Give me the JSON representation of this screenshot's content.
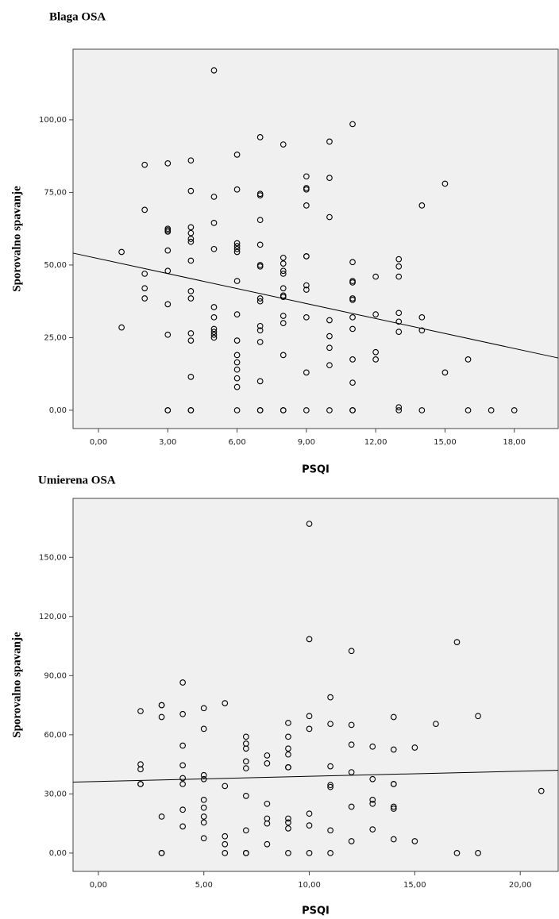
{
  "chart_data": [
    {
      "type": "scatter",
      "title": "Blaga OSA",
      "x_label": "PSQI",
      "y_label": "Sporovalno spavanje",
      "xlim": [
        -1.1,
        19.9
      ],
      "ylim": [
        -6.3,
        124.3
      ],
      "xticks": [
        {
          "value": 0,
          "label": "0,00"
        },
        {
          "value": 3,
          "label": "3,00"
        },
        {
          "value": 6,
          "label": "6,00"
        },
        {
          "value": 9,
          "label": "9,00"
        },
        {
          "value": 12,
          "label": "12,00"
        },
        {
          "value": 15,
          "label": "15,00"
        },
        {
          "value": 18,
          "label": "18,00"
        }
      ],
      "yticks": [
        {
          "value": 0,
          "label": "0,00"
        },
        {
          "value": 25,
          "label": "25,00"
        },
        {
          "value": 50,
          "label": "50,00"
        },
        {
          "value": 75,
          "label": "75,00"
        },
        {
          "value": 100,
          "label": "100,00"
        }
      ],
      "color": "#000000",
      "x": [
        1,
        1,
        2,
        2,
        2,
        2,
        2,
        3,
        3,
        3,
        3,
        3,
        3,
        3,
        3,
        3,
        3,
        4,
        4,
        4,
        4,
        4,
        4,
        4,
        4,
        4,
        4,
        4,
        4,
        4,
        4,
        5,
        5,
        5,
        5,
        5,
        5,
        5,
        5,
        5,
        5,
        6,
        6,
        6,
        6,
        6,
        6,
        6,
        6,
        6,
        6,
        6,
        6,
        6,
        6,
        6,
        7,
        7,
        7,
        7,
        7,
        7,
        7,
        7,
        7,
        7,
        7,
        7,
        7,
        7,
        7,
        8,
        8,
        8,
        8,
        8,
        8,
        8,
        8,
        8,
        8,
        8,
        8,
        8,
        9,
        9,
        9,
        9,
        9,
        9,
        9,
        9,
        9,
        9,
        9,
        10,
        10,
        10,
        10,
        10,
        10,
        10,
        10,
        11,
        11,
        11,
        11,
        11,
        11,
        11,
        11,
        11,
        11,
        11,
        11,
        12,
        12,
        12,
        12,
        13,
        13,
        13,
        13,
        13,
        13,
        13,
        13,
        14,
        14,
        14,
        14,
        15,
        15,
        16,
        16,
        17,
        18
      ],
      "y": [
        54.5,
        28.5,
        84.5,
        69,
        47,
        42,
        38.5,
        85,
        62.5,
        62,
        61.5,
        55,
        48,
        36.5,
        26,
        0,
        0,
        86,
        75.5,
        63,
        61,
        59,
        58,
        51.5,
        41,
        38.5,
        26.5,
        24,
        11.5,
        0,
        0,
        117,
        73.5,
        64.5,
        55.5,
        35.5,
        32,
        28,
        27,
        26,
        25,
        88,
        76,
        57.5,
        56.5,
        55.5,
        54.5,
        44.5,
        33,
        24,
        19,
        16.5,
        14,
        11,
        8,
        0,
        94,
        74.5,
        74,
        65.5,
        57,
        50,
        49.5,
        38.5,
        37.5,
        29,
        27.5,
        23.5,
        10,
        0,
        0,
        91.5,
        52.5,
        50.5,
        48,
        47,
        42,
        39.5,
        39,
        32.5,
        30,
        19,
        0,
        0,
        80.5,
        76.5,
        76,
        70.5,
        53,
        53,
        43,
        41.5,
        32,
        13,
        0,
        92.5,
        80,
        66.5,
        31,
        25.5,
        21.5,
        15.5,
        0,
        98.5,
        51,
        44.5,
        44,
        38.5,
        38,
        32,
        28,
        17.5,
        9.5,
        0,
        0,
        46,
        33,
        20,
        17.5,
        52,
        49.5,
        46,
        33.5,
        30.5,
        27,
        1,
        0,
        70.5,
        32,
        27.5,
        0,
        78,
        13,
        17.5,
        0,
        0,
        0
      ],
      "fit_line": {
        "x": [
          -1.1,
          19.9
        ],
        "y": [
          54.1,
          18.0
        ]
      }
    },
    {
      "type": "scatter",
      "title": "Umierena OSA",
      "x_label": "PSQI",
      "y_label": "Sporovalno spavanje",
      "xlim": [
        -1.2,
        21.8
      ],
      "ylim": [
        -9.3,
        179.9
      ],
      "xticks": [
        {
          "value": 0,
          "label": "0,00"
        },
        {
          "value": 5,
          "label": "5,00"
        },
        {
          "value": 10,
          "label": "10,00"
        },
        {
          "value": 15,
          "label": "15,00"
        },
        {
          "value": 20,
          "label": "20,00"
        }
      ],
      "yticks": [
        {
          "value": 0,
          "label": "0,00"
        },
        {
          "value": 30,
          "label": "30,00"
        },
        {
          "value": 60,
          "label": "60,00"
        },
        {
          "value": 90,
          "label": "90,00"
        },
        {
          "value": 120,
          "label": "120,00"
        },
        {
          "value": 150,
          "label": "150,00"
        }
      ],
      "color": "#000000",
      "x": [
        2,
        2,
        2,
        2,
        2,
        3,
        3,
        3,
        3,
        3,
        3,
        4,
        4,
        4,
        4,
        4,
        4,
        4,
        4,
        5,
        5,
        5,
        5,
        5,
        5,
        5,
        5,
        5,
        6,
        6,
        6,
        6,
        6,
        7,
        7,
        7,
        7,
        7,
        7,
        7,
        7,
        7,
        8,
        8,
        8,
        8,
        8,
        8,
        9,
        9,
        9,
        9,
        9,
        9,
        9,
        9,
        9,
        9,
        10,
        10,
        10,
        10,
        10,
        10,
        10,
        11,
        11,
        11,
        11,
        11,
        11,
        11,
        12,
        12,
        12,
        12,
        12,
        12,
        13,
        13,
        13,
        13,
        13,
        14,
        14,
        14,
        14,
        14,
        14,
        14,
        15,
        15,
        16,
        17,
        17,
        18,
        18,
        21
      ],
      "y": [
        72,
        45,
        42.5,
        35,
        35,
        75,
        75,
        69,
        18.5,
        0,
        0,
        86.5,
        70.5,
        54.5,
        44.5,
        38,
        35,
        22,
        13.5,
        73.5,
        63,
        39.5,
        37.5,
        27,
        23,
        18.5,
        15.5,
        7.5,
        76,
        34,
        8.5,
        4.5,
        0,
        59,
        55.5,
        53,
        46.5,
        43,
        29,
        11.5,
        0,
        0,
        49.5,
        45.5,
        25,
        17.5,
        15,
        4.5,
        66,
        59,
        53,
        50,
        43.5,
        43.5,
        17.5,
        15.5,
        12.5,
        0,
        167,
        108.5,
        69.5,
        63,
        20,
        14,
        0,
        79,
        65.5,
        44,
        34.5,
        33.5,
        11.5,
        0,
        102.5,
        65,
        55,
        41,
        23.5,
        6,
        54,
        37.5,
        27,
        25,
        12,
        69,
        52.5,
        35,
        35,
        23.5,
        22.5,
        7,
        53.5,
        6,
        65.5,
        107,
        0,
        69.5,
        0,
        31.5
      ],
      "fit_line": {
        "x": [
          -1.2,
          21.8
        ],
        "y": [
          36.0,
          42.0
        ]
      }
    }
  ]
}
